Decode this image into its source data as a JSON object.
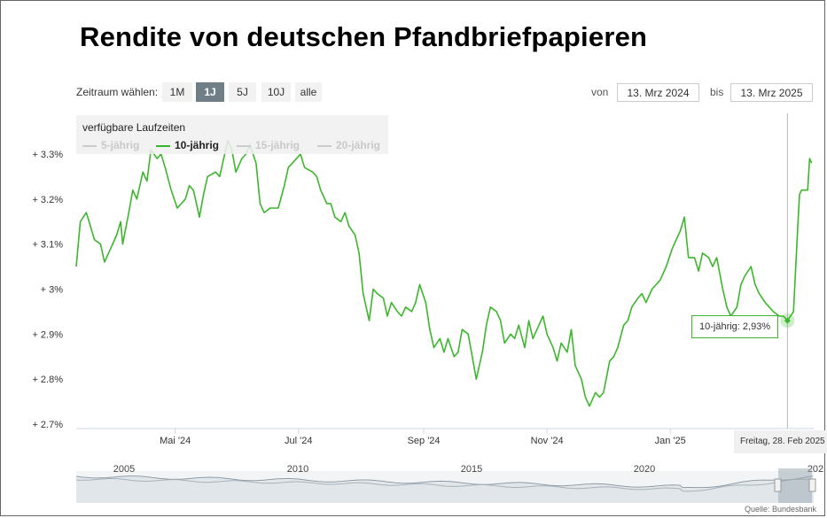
{
  "title": "Rendite von deutschen Pfandbriefpapieren",
  "range": {
    "label": "Zeitraum wählen:",
    "buttons": [
      "1M",
      "1J",
      "5J",
      "10J",
      "alle"
    ],
    "active": "1J"
  },
  "dates": {
    "from_label": "von",
    "from": "13. Mrz 2024",
    "to_label": "bis",
    "to": "13. Mrz 2025"
  },
  "legend": {
    "title": "verfügbare Laufzeiten",
    "items": [
      {
        "label": "5-jährig",
        "active": false
      },
      {
        "label": "10-jährig",
        "active": true
      },
      {
        "label": "15-jährig",
        "active": false
      },
      {
        "label": "20-jährig",
        "active": false
      }
    ]
  },
  "tooltip": {
    "text": "10-jährig: 2,93%"
  },
  "crosshair_label": "Freitag, 28. Feb 2025",
  "navigator": {
    "years": [
      "2005",
      "2010",
      "2015",
      "2020",
      "202"
    ]
  },
  "source": "Quelle: Bundesbank",
  "colors": {
    "series": "#3cb62c",
    "active_button": "#6f7e87"
  },
  "chart_data": {
    "type": "line",
    "x_range": [
      "2024-03-13",
      "2025-03-13"
    ],
    "ylim": [
      2.7,
      3.3
    ],
    "yticks": [
      "+ 3.3%",
      "+ 3.2%",
      "+ 3.1%",
      "+ 3%",
      "+ 2.9%",
      "+ 2.8%",
      "+ 2.7%"
    ],
    "ytick_values": [
      3.3,
      3.2,
      3.1,
      3.0,
      2.9,
      2.8,
      2.7
    ],
    "xticks": [
      {
        "label": "Mai '24",
        "date": "2024-05-01"
      },
      {
        "label": "Jul '24",
        "date": "2024-07-01"
      },
      {
        "label": "Sep '24",
        "date": "2024-09-01"
      },
      {
        "label": "Nov '24",
        "date": "2024-11-01"
      },
      {
        "label": "Jan '25",
        "date": "2025-01-01"
      }
    ],
    "grid": false,
    "legend_position": "top-left",
    "series": [
      {
        "name": "10-jährig",
        "points": [
          [
            "2024-03-13",
            3.05
          ],
          [
            "2024-03-15",
            3.15
          ],
          [
            "2024-03-18",
            3.17
          ],
          [
            "2024-03-20",
            3.14
          ],
          [
            "2024-03-22",
            3.11
          ],
          [
            "2024-03-25",
            3.1
          ],
          [
            "2024-03-27",
            3.06
          ],
          [
            "2024-03-29",
            3.08
          ],
          [
            "2024-04-02",
            3.12
          ],
          [
            "2024-04-04",
            3.15
          ],
          [
            "2024-04-05",
            3.1
          ],
          [
            "2024-04-08",
            3.17
          ],
          [
            "2024-04-10",
            3.22
          ],
          [
            "2024-04-12",
            3.2
          ],
          [
            "2024-04-15",
            3.26
          ],
          [
            "2024-04-17",
            3.24
          ],
          [
            "2024-04-19",
            3.31
          ],
          [
            "2024-04-22",
            3.29
          ],
          [
            "2024-04-24",
            3.3
          ],
          [
            "2024-04-26",
            3.27
          ],
          [
            "2024-04-29",
            3.22
          ],
          [
            "2024-05-02",
            3.18
          ],
          [
            "2024-05-06",
            3.2
          ],
          [
            "2024-05-08",
            3.23
          ],
          [
            "2024-05-10",
            3.22
          ],
          [
            "2024-05-13",
            3.16
          ],
          [
            "2024-05-15",
            3.21
          ],
          [
            "2024-05-17",
            3.25
          ],
          [
            "2024-05-21",
            3.26
          ],
          [
            "2024-05-23",
            3.25
          ],
          [
            "2024-05-27",
            3.33
          ],
          [
            "2024-05-29",
            3.31
          ],
          [
            "2024-05-31",
            3.26
          ],
          [
            "2024-06-03",
            3.29
          ],
          [
            "2024-06-05",
            3.3
          ],
          [
            "2024-06-07",
            3.32
          ],
          [
            "2024-06-10",
            3.28
          ],
          [
            "2024-06-12",
            3.19
          ],
          [
            "2024-06-14",
            3.17
          ],
          [
            "2024-06-17",
            3.18
          ],
          [
            "2024-06-19",
            3.18
          ],
          [
            "2024-06-21",
            3.18
          ],
          [
            "2024-06-24",
            3.23
          ],
          [
            "2024-06-26",
            3.27
          ],
          [
            "2024-06-28",
            3.28
          ],
          [
            "2024-07-02",
            3.3
          ],
          [
            "2024-07-04",
            3.27
          ],
          [
            "2024-07-08",
            3.26
          ],
          [
            "2024-07-10",
            3.25
          ],
          [
            "2024-07-12",
            3.22
          ],
          [
            "2024-07-15",
            3.19
          ],
          [
            "2024-07-17",
            3.19
          ],
          [
            "2024-07-19",
            3.16
          ],
          [
            "2024-07-22",
            3.15
          ],
          [
            "2024-07-24",
            3.17
          ],
          [
            "2024-07-26",
            3.14
          ],
          [
            "2024-07-29",
            3.12
          ],
          [
            "2024-07-31",
            3.08
          ],
          [
            "2024-08-02",
            2.99
          ],
          [
            "2024-08-05",
            2.93
          ],
          [
            "2024-08-07",
            3.0
          ],
          [
            "2024-08-09",
            2.99
          ],
          [
            "2024-08-12",
            2.98
          ],
          [
            "2024-08-14",
            2.94
          ],
          [
            "2024-08-16",
            2.97
          ],
          [
            "2024-08-19",
            2.95
          ],
          [
            "2024-08-21",
            2.94
          ],
          [
            "2024-08-23",
            2.96
          ],
          [
            "2024-08-26",
            2.95
          ],
          [
            "2024-08-28",
            2.97
          ],
          [
            "2024-08-30",
            3.01
          ],
          [
            "2024-09-02",
            2.97
          ],
          [
            "2024-09-04",
            2.91
          ],
          [
            "2024-09-06",
            2.87
          ],
          [
            "2024-09-09",
            2.89
          ],
          [
            "2024-09-11",
            2.86
          ],
          [
            "2024-09-13",
            2.89
          ],
          [
            "2024-09-16",
            2.85
          ],
          [
            "2024-09-18",
            2.86
          ],
          [
            "2024-09-20",
            2.91
          ],
          [
            "2024-09-23",
            2.9
          ],
          [
            "2024-09-25",
            2.85
          ],
          [
            "2024-09-27",
            2.8
          ],
          [
            "2024-09-30",
            2.86
          ],
          [
            "2024-10-02",
            2.92
          ],
          [
            "2024-10-04",
            2.96
          ],
          [
            "2024-10-07",
            2.95
          ],
          [
            "2024-10-09",
            2.93
          ],
          [
            "2024-10-11",
            2.88
          ],
          [
            "2024-10-14",
            2.9
          ],
          [
            "2024-10-16",
            2.89
          ],
          [
            "2024-10-18",
            2.92
          ],
          [
            "2024-10-21",
            2.87
          ],
          [
            "2024-10-23",
            2.93
          ],
          [
            "2024-10-25",
            2.89
          ],
          [
            "2024-10-28",
            2.92
          ],
          [
            "2024-10-30",
            2.94
          ],
          [
            "2024-11-01",
            2.9
          ],
          [
            "2024-11-04",
            2.87
          ],
          [
            "2024-11-06",
            2.84
          ],
          [
            "2024-11-08",
            2.88
          ],
          [
            "2024-11-11",
            2.86
          ],
          [
            "2024-11-13",
            2.91
          ],
          [
            "2024-11-15",
            2.83
          ],
          [
            "2024-11-18",
            2.8
          ],
          [
            "2024-11-20",
            2.76
          ],
          [
            "2024-11-22",
            2.74
          ],
          [
            "2024-11-25",
            2.77
          ],
          [
            "2024-11-27",
            2.76
          ],
          [
            "2024-11-29",
            2.77
          ],
          [
            "2024-12-02",
            2.84
          ],
          [
            "2024-12-04",
            2.85
          ],
          [
            "2024-12-06",
            2.87
          ],
          [
            "2024-12-09",
            2.92
          ],
          [
            "2024-12-11",
            2.93
          ],
          [
            "2024-12-13",
            2.96
          ],
          [
            "2024-12-16",
            2.98
          ],
          [
            "2024-12-18",
            2.99
          ],
          [
            "2024-12-20",
            2.97
          ],
          [
            "2024-12-23",
            3.0
          ],
          [
            "2024-12-27",
            3.02
          ],
          [
            "2024-12-30",
            3.05
          ],
          [
            "2025-01-02",
            3.09
          ],
          [
            "2025-01-06",
            3.13
          ],
          [
            "2025-01-08",
            3.16
          ],
          [
            "2025-01-10",
            3.07
          ],
          [
            "2025-01-13",
            3.07
          ],
          [
            "2025-01-15",
            3.04
          ],
          [
            "2025-01-17",
            3.08
          ],
          [
            "2025-01-20",
            3.07
          ],
          [
            "2025-01-22",
            3.05
          ],
          [
            "2025-01-24",
            3.07
          ],
          [
            "2025-01-27",
            3.0
          ],
          [
            "2025-01-29",
            2.96
          ],
          [
            "2025-01-31",
            2.94
          ],
          [
            "2025-02-03",
            2.96
          ],
          [
            "2025-02-05",
            3.01
          ],
          [
            "2025-02-07",
            3.03
          ],
          [
            "2025-02-10",
            3.05
          ],
          [
            "2025-02-12",
            3.01
          ],
          [
            "2025-02-14",
            2.99
          ],
          [
            "2025-02-17",
            2.97
          ],
          [
            "2025-02-19",
            2.96
          ],
          [
            "2025-02-21",
            2.95
          ],
          [
            "2025-02-24",
            2.94
          ],
          [
            "2025-02-26",
            2.94
          ],
          [
            "2025-02-28",
            2.93
          ],
          [
            "2025-03-03",
            2.95
          ],
          [
            "2025-03-05",
            3.13
          ],
          [
            "2025-03-06",
            3.21
          ],
          [
            "2025-03-07",
            3.22
          ],
          [
            "2025-03-10",
            3.22
          ],
          [
            "2025-03-11",
            3.29
          ],
          [
            "2025-03-12",
            3.28
          ]
        ]
      }
    ],
    "highlight": {
      "date": "2025-02-28",
      "value": 2.93
    }
  }
}
